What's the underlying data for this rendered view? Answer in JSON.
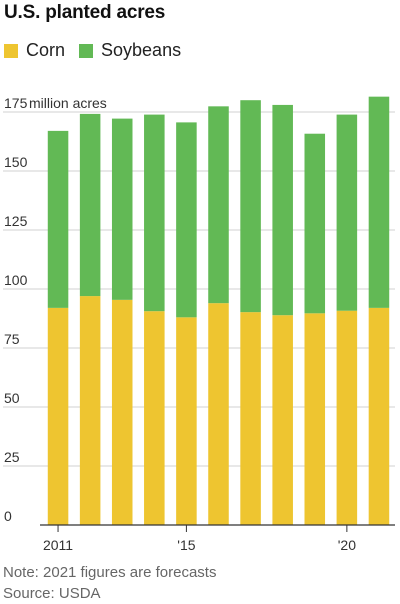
{
  "title": "U.S. planted acres",
  "note": "Note: 2021 figures are forecasts",
  "source": "Source: USDA",
  "colors": {
    "corn": "#eec530",
    "soybeans": "#62b955",
    "grid": "#d0d0d0",
    "axis": "#333333"
  },
  "chart_data": {
    "type": "bar",
    "stacked": true,
    "title": "U.S. planted acres",
    "ylabel": "",
    "y_unit_label": "million acres",
    "ylim": [
      0,
      175
    ],
    "yticks": [
      0,
      25,
      50,
      75,
      100,
      125,
      150,
      175
    ],
    "categories": [
      "2011",
      "2012",
      "2013",
      "2014",
      "2015",
      "2016",
      "2017",
      "2018",
      "2019",
      "2020",
      "2021"
    ],
    "xtick_labels": [
      {
        "category": "2011",
        "label": "2011"
      },
      {
        "category": "2015",
        "label": "'15"
      },
      {
        "category": "2020",
        "label": "'20"
      }
    ],
    "series": [
      {
        "name": "Corn",
        "values": [
          92,
          97,
          95.4,
          90.6,
          88,
          94,
          90.2,
          88.9,
          89.7,
          90.8,
          92
        ]
      },
      {
        "name": "Soybeans",
        "values": [
          75,
          77.2,
          76.8,
          83.3,
          82.6,
          83.4,
          89.8,
          89.1,
          76.1,
          83.1,
          89.5
        ]
      }
    ],
    "grid": true,
    "legend": "top-left"
  }
}
